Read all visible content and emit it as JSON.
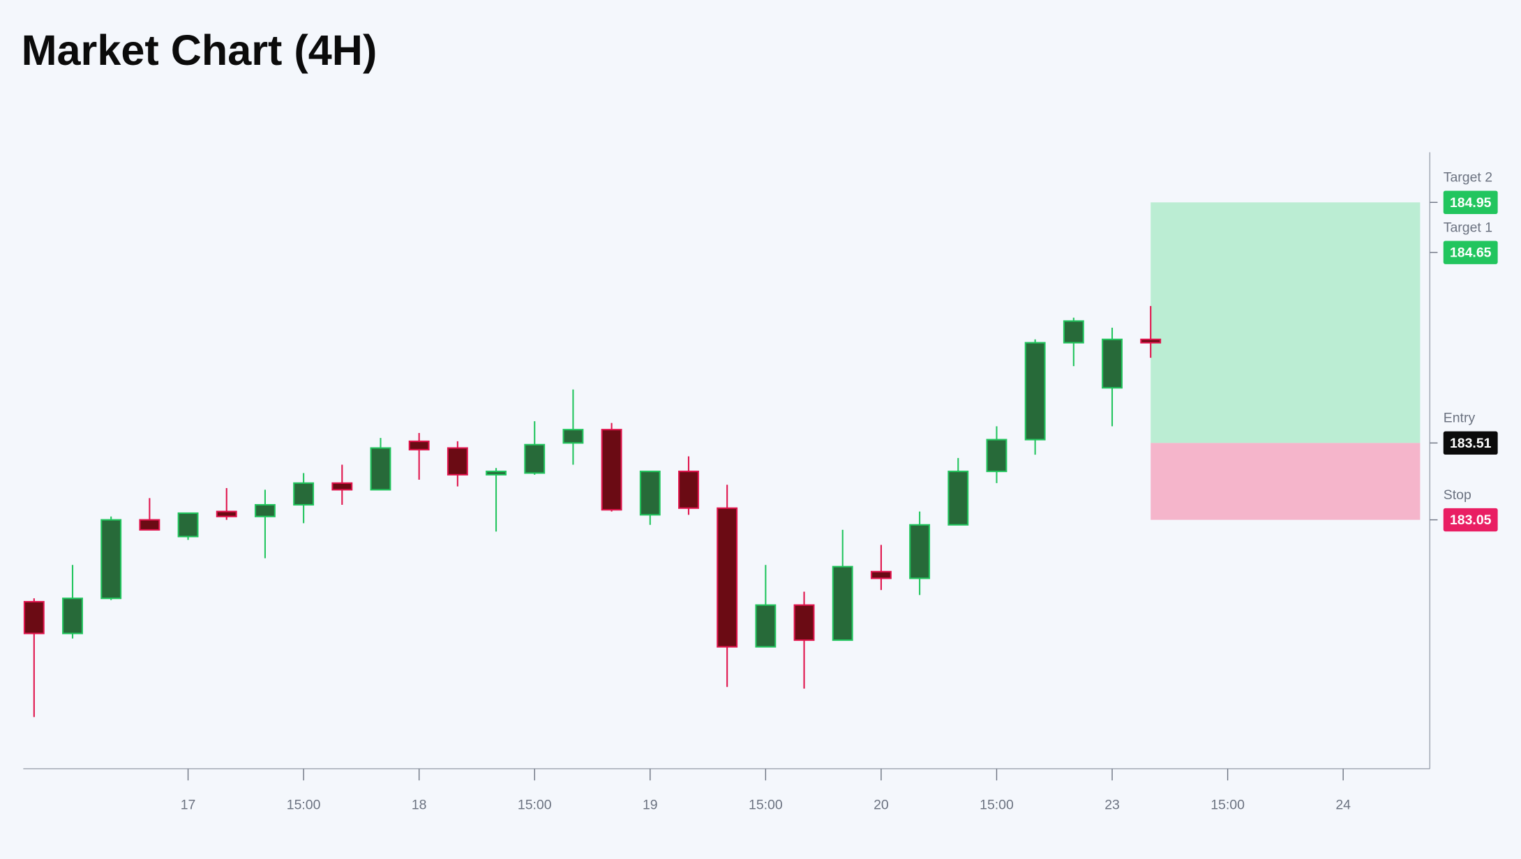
{
  "chart_data": {
    "type": "candlestick",
    "title": "Market Chart (4H)",
    "x": [
      0,
      1,
      2,
      3,
      4,
      5,
      6,
      7,
      8,
      9,
      10,
      11,
      12,
      13,
      14,
      15,
      16,
      17,
      18,
      19,
      20,
      21,
      22,
      23,
      24,
      25,
      26,
      27,
      28,
      29
    ],
    "open": [
      182.56,
      182.37,
      182.58,
      183.05,
      182.95,
      183.1,
      183.07,
      183.14,
      183.27,
      183.23,
      183.52,
      183.48,
      183.32,
      183.33,
      183.51,
      183.59,
      183.08,
      183.34,
      183.12,
      182.29,
      182.54,
      182.33,
      182.74,
      182.7,
      183.02,
      183.34,
      183.53,
      184.11,
      183.84,
      184.13
    ],
    "high": [
      182.58,
      182.78,
      183.07,
      183.18,
      183.09,
      183.24,
      183.23,
      183.33,
      183.38,
      183.54,
      183.57,
      183.52,
      183.36,
      183.64,
      183.83,
      183.63,
      183.34,
      183.43,
      183.26,
      182.78,
      182.62,
      182.99,
      182.9,
      183.1,
      183.42,
      183.61,
      184.13,
      184.26,
      184.2,
      184.33
    ],
    "low": [
      181.87,
      182.34,
      182.57,
      182.99,
      182.93,
      183.05,
      182.82,
      183.03,
      183.14,
      183.23,
      183.29,
      183.25,
      182.98,
      183.32,
      183.38,
      183.1,
      183.02,
      183.08,
      182.05,
      182.29,
      182.04,
      182.33,
      182.63,
      182.6,
      183.02,
      183.27,
      183.44,
      183.97,
      183.61,
      184.02
    ],
    "close": [
      182.37,
      182.58,
      183.05,
      182.99,
      183.09,
      183.07,
      183.14,
      183.27,
      183.23,
      183.48,
      183.47,
      183.32,
      183.34,
      183.5,
      183.59,
      183.11,
      183.34,
      183.12,
      182.29,
      182.54,
      182.33,
      182.77,
      182.7,
      183.02,
      183.34,
      183.53,
      184.11,
      184.24,
      184.13,
      184.11
    ],
    "up_color": "#276a39",
    "up_edge": "#22c55e",
    "down_color": "#6b0b14",
    "down_edge": "#e0144c",
    "xlim": [
      -0.28,
      36.25
    ],
    "xticks": [
      {
        "value": 4,
        "label": "17"
      },
      {
        "value": 7,
        "label": "15:00"
      },
      {
        "value": 10,
        "label": "18"
      },
      {
        "value": 13,
        "label": "15:00"
      },
      {
        "value": 16,
        "label": "19"
      },
      {
        "value": 19,
        "label": "15:00"
      },
      {
        "value": 22,
        "label": "20"
      },
      {
        "value": 25,
        "label": "15:00"
      },
      {
        "value": 28,
        "label": "23"
      },
      {
        "value": 31,
        "label": "15:00"
      },
      {
        "value": 34,
        "label": "24"
      }
    ],
    "ylim": [
      181.56,
      185.25
    ],
    "levels": [
      {
        "name": "Target 2",
        "value": 184.95,
        "color": "#22c55e"
      },
      {
        "name": "Target 1",
        "value": 184.65,
        "color": "#22c55e"
      },
      {
        "name": "Entry",
        "value": 183.51,
        "color": "#0b0b0b"
      },
      {
        "name": "Stop",
        "value": 183.05,
        "color": "#e91e63"
      }
    ],
    "profit_color": "#bbedd3",
    "loss_color": "#f5b5cb"
  }
}
